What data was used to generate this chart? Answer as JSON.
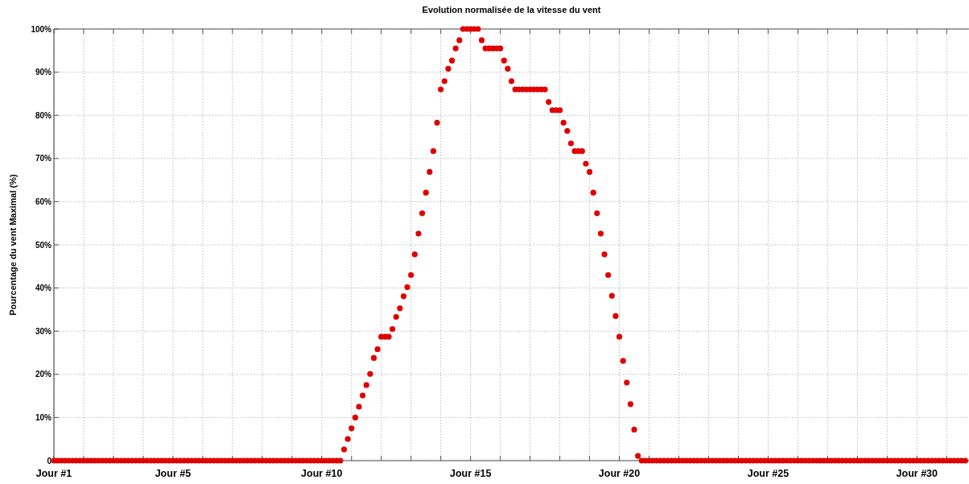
{
  "chart_data": {
    "type": "scatter",
    "title": "Evolution normalisée de la vitesse du vent",
    "ylabel": "Pourcentage du vent Maximal (%)",
    "x": [
      1,
      1.125,
      1.25,
      1.375,
      1.5,
      1.625,
      1.75,
      1.875,
      2,
      2.125,
      2.25,
      2.375,
      2.5,
      2.625,
      2.75,
      2.875,
      3,
      3.125,
      3.25,
      3.375,
      3.5,
      3.625,
      3.75,
      3.875,
      4,
      4.125,
      4.25,
      4.375,
      4.5,
      4.625,
      4.75,
      4.875,
      5,
      5.125,
      5.25,
      5.375,
      5.5,
      5.625,
      5.75,
      5.875,
      6,
      6.125,
      6.25,
      6.375,
      6.5,
      6.625,
      6.75,
      6.875,
      7,
      7.125,
      7.25,
      7.375,
      7.5,
      7.625,
      7.75,
      7.875,
      8,
      8.125,
      8.25,
      8.375,
      8.5,
      8.625,
      8.75,
      8.875,
      9,
      9.125,
      9.25,
      9.375,
      9.5,
      9.625,
      9.75,
      9.875,
      10,
      10.125,
      10.25,
      10.375,
      10.5,
      10.625,
      10.75,
      10.875,
      11,
      11.125,
      11.25,
      11.375,
      11.5,
      11.625,
      11.75,
      11.875,
      12,
      12.125,
      12.25,
      12.375,
      12.5,
      12.625,
      12.75,
      12.875,
      13,
      13.125,
      13.25,
      13.375,
      13.5,
      13.625,
      13.75,
      13.875,
      14,
      14.125,
      14.25,
      14.375,
      14.5,
      14.625,
      14.75,
      14.875,
      15,
      15.125,
      15.25,
      15.375,
      15.5,
      15.625,
      15.75,
      15.875,
      16,
      16.125,
      16.25,
      16.375,
      16.5,
      16.625,
      16.75,
      16.875,
      17,
      17.125,
      17.25,
      17.375,
      17.5,
      17.625,
      17.75,
      17.875,
      18,
      18.125,
      18.25,
      18.375,
      18.5,
      18.625,
      18.75,
      18.875,
      19,
      19.125,
      19.25,
      19.375,
      19.5,
      19.625,
      19.75,
      19.875,
      20,
      20.125,
      20.25,
      20.375,
      20.5,
      20.625,
      20.75,
      20.875,
      21,
      21.125,
      21.25,
      21.375,
      21.5,
      21.625,
      21.75,
      21.875,
      22,
      22.125,
      22.25,
      22.375,
      22.5,
      22.625,
      22.75,
      22.875,
      23,
      23.125,
      23.25,
      23.375,
      23.5,
      23.625,
      23.75,
      23.875,
      24,
      24.125,
      24.25,
      24.375,
      24.5,
      24.625,
      24.75,
      24.875,
      25,
      25.125,
      25.25,
      25.375,
      25.5,
      25.625,
      25.75,
      25.875,
      26,
      26.125,
      26.25,
      26.375,
      26.5,
      26.625,
      26.75,
      26.875,
      27,
      27.125,
      27.25,
      27.375,
      27.5,
      27.625,
      27.75,
      27.875,
      28,
      28.125,
      28.25,
      28.375,
      28.5,
      28.625,
      28.75,
      28.875,
      29,
      29.125,
      29.25,
      29.375,
      29.5,
      29.625,
      29.75,
      29.875,
      30,
      30.125,
      30.25,
      30.375,
      30.5,
      30.625,
      30.75,
      30.875,
      31,
      31.125,
      31.25,
      31.375,
      31.5,
      31.625
    ],
    "series": [
      {
        "color": "#e00000",
        "values": [
          0,
          0,
          0,
          0,
          0,
          0,
          0,
          0,
          0,
          0,
          0,
          0,
          0,
          0,
          0,
          0,
          0,
          0,
          0,
          0,
          0,
          0,
          0,
          0,
          0,
          0,
          0,
          0,
          0,
          0,
          0,
          0,
          0,
          0,
          0,
          0,
          0,
          0,
          0,
          0,
          0,
          0,
          0,
          0,
          0,
          0,
          0,
          0,
          0,
          0,
          0,
          0,
          0,
          0,
          0,
          0,
          0,
          0,
          0,
          0,
          0,
          0,
          0,
          0,
          0,
          0,
          0,
          0,
          0,
          0,
          0,
          0,
          0,
          0,
          0,
          0,
          0,
          0,
          2.6,
          5.0,
          7.5,
          10.0,
          12.5,
          15.1,
          17.5,
          20.1,
          23.8,
          25.8,
          28.7,
          28.7,
          28.7,
          30.5,
          33.3,
          35.3,
          38.1,
          40.2,
          43.0,
          47.8,
          52.6,
          57.3,
          62.1,
          66.9,
          71.7,
          78.3,
          86.0,
          87.9,
          90.8,
          92.7,
          95.5,
          97.4,
          100,
          100,
          100,
          100,
          100,
          97.4,
          95.5,
          95.5,
          95.5,
          95.5,
          95.5,
          92.7,
          90.8,
          87.9,
          86.0,
          86.0,
          86.0,
          86.0,
          86.0,
          86.0,
          86.0,
          86.0,
          86.0,
          83.1,
          81.2,
          81.2,
          81.2,
          78.3,
          76.4,
          73.5,
          71.7,
          71.7,
          71.7,
          68.8,
          66.9,
          62.1,
          57.3,
          52.6,
          47.8,
          43.0,
          38.2,
          33.5,
          28.7,
          23.1,
          18.1,
          13.1,
          7.2,
          1.1,
          0,
          0,
          0,
          0,
          0,
          0,
          0,
          0,
          0,
          0,
          0,
          0,
          0,
          0,
          0,
          0,
          0,
          0,
          0,
          0,
          0,
          0,
          0,
          0,
          0,
          0,
          0,
          0,
          0,
          0,
          0,
          0,
          0,
          0,
          0,
          0,
          0,
          0,
          0,
          0,
          0,
          0,
          0,
          0,
          0,
          0,
          0,
          0,
          0,
          0,
          0,
          0,
          0,
          0,
          0,
          0,
          0,
          0,
          0,
          0,
          0,
          0,
          0,
          0,
          0,
          0,
          0,
          0,
          0,
          0,
          0,
          0,
          0,
          0,
          0,
          0,
          0,
          0,
          0,
          0,
          0,
          0,
          0,
          0,
          0,
          0,
          0,
          0
        ]
      }
    ],
    "xlim": [
      1,
      31.75
    ],
    "xticks": [
      {
        "value": 1,
        "label": "Jour #1"
      },
      {
        "value": 2,
        "label": null
      },
      {
        "value": 3,
        "label": null
      },
      {
        "value": 4,
        "label": null
      },
      {
        "value": 5,
        "label": "Jour #5"
      },
      {
        "value": 6,
        "label": null
      },
      {
        "value": 7,
        "label": null
      },
      {
        "value": 8,
        "label": null
      },
      {
        "value": 9,
        "label": null
      },
      {
        "value": 10,
        "label": "Jour #10"
      },
      {
        "value": 11,
        "label": null
      },
      {
        "value": 12,
        "label": null
      },
      {
        "value": 13,
        "label": null
      },
      {
        "value": 14,
        "label": null
      },
      {
        "value": 15,
        "label": "Jour #15"
      },
      {
        "value": 16,
        "label": null
      },
      {
        "value": 17,
        "label": null
      },
      {
        "value": 18,
        "label": null
      },
      {
        "value": 19,
        "label": null
      },
      {
        "value": 20,
        "label": "Jour #20"
      },
      {
        "value": 21,
        "label": null
      },
      {
        "value": 22,
        "label": null
      },
      {
        "value": 23,
        "label": null
      },
      {
        "value": 24,
        "label": null
      },
      {
        "value": 25,
        "label": "Jour #25"
      },
      {
        "value": 26,
        "label": null
      },
      {
        "value": 27,
        "label": null
      },
      {
        "value": 28,
        "label": null
      },
      {
        "value": 29,
        "label": null
      },
      {
        "value": 30,
        "label": "Jour #30"
      },
      {
        "value": 31,
        "label": null
      }
    ],
    "ylim": [
      0,
      100
    ],
    "yticks": [
      0,
      {
        "value": 10,
        "label": "10%"
      },
      {
        "value": 20,
        "label": "20%"
      },
      {
        "value": 30,
        "label": "30%"
      },
      {
        "value": 40,
        "label": "40%"
      },
      {
        "value": 50,
        "label": "50%"
      },
      {
        "value": 60,
        "label": "60%"
      },
      {
        "value": 70,
        "label": "70%"
      },
      {
        "value": 80,
        "label": "80%"
      },
      {
        "value": 90,
        "label": "90%"
      },
      {
        "value": 100,
        "label": "100%"
      }
    ],
    "grid": true,
    "marker": "circle"
  }
}
